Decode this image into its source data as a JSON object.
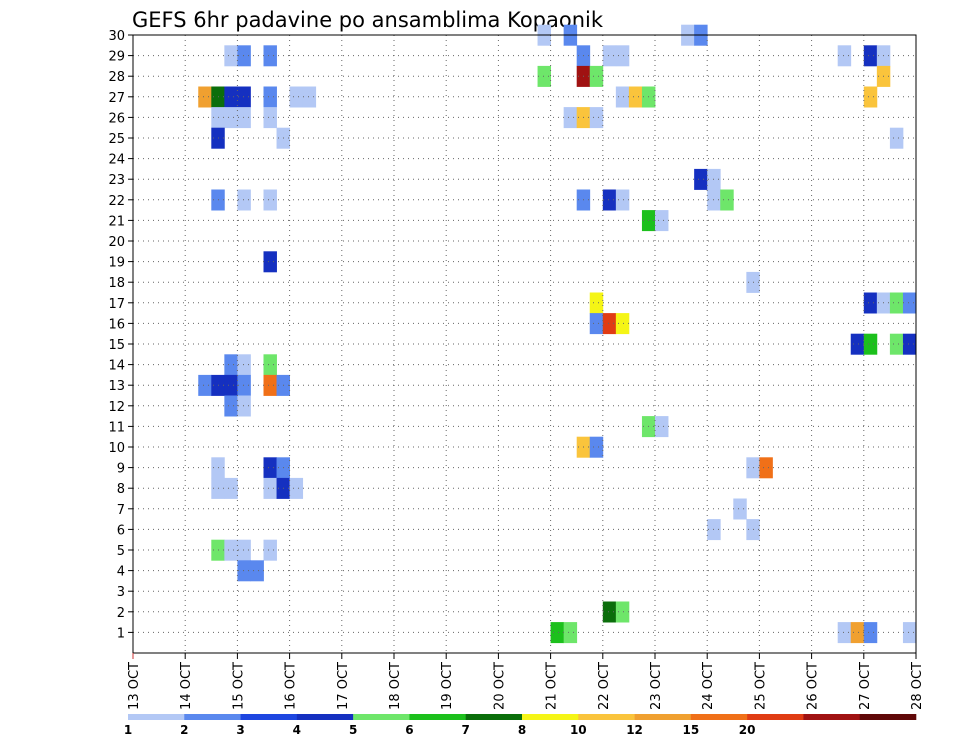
{
  "chart_data": {
    "type": "heatmap",
    "title": "GEFS 6hr padavine po ansamblima Kopaonik",
    "x": {
      "unit": "6-hour steps from 13 OCT 00Z",
      "range": [
        0,
        60
      ],
      "ticks": [
        {
          "step": 0,
          "label": "13 OCT"
        },
        {
          "step": 4,
          "label": "14 OCT"
        },
        {
          "step": 8,
          "label": "15 OCT"
        },
        {
          "step": 12,
          "label": "16 OCT"
        },
        {
          "step": 16,
          "label": "17 OCT"
        },
        {
          "step": 20,
          "label": "18 OCT"
        },
        {
          "step": 24,
          "label": "19 OCT"
        },
        {
          "step": 28,
          "label": "20 OCT"
        },
        {
          "step": 32,
          "label": "21 OCT"
        },
        {
          "step": 36,
          "label": "22 OCT"
        },
        {
          "step": 40,
          "label": "23 OCT"
        },
        {
          "step": 44,
          "label": "24 OCT"
        },
        {
          "step": 48,
          "label": "25 OCT"
        },
        {
          "step": 52,
          "label": "26 OCT"
        },
        {
          "step": 56,
          "label": "27 OCT"
        },
        {
          "step": 60,
          "label": "28 OCT"
        }
      ]
    },
    "y": {
      "ticks": [
        1,
        2,
        3,
        4,
        5,
        6,
        7,
        8,
        9,
        10,
        11,
        12,
        13,
        14,
        15,
        16,
        17,
        18,
        19,
        20,
        21,
        22,
        23,
        24,
        25,
        26,
        27,
        28,
        29,
        30
      ],
      "range": [
        0,
        30
      ]
    },
    "grid": true,
    "legend": {
      "placement": "bottom",
      "colors": [
        "#b3c8f5",
        "#5a88ee",
        "#1e46e0",
        "#1530c0",
        "#6ee66a",
        "#1cc01c",
        "#0b6e0b",
        "#f5f516",
        "#fac43c",
        "#f0a030",
        "#f07018",
        "#e03c14",
        "#a01212",
        "#600808"
      ],
      "labels": [
        "1",
        "2",
        "3",
        "4",
        "5",
        "6",
        "7",
        "8",
        "10",
        "12",
        "15",
        "20"
      ]
    },
    "cells": [
      [
        32,
        30,
        1
      ],
      [
        34,
        30,
        2
      ],
      [
        43,
        30,
        1
      ],
      [
        44,
        30,
        2
      ],
      [
        8,
        29,
        1
      ],
      [
        9,
        29,
        2
      ],
      [
        11,
        29,
        2
      ],
      [
        35,
        29,
        2
      ],
      [
        37,
        29,
        1
      ],
      [
        38,
        29,
        1
      ],
      [
        55,
        29,
        1
      ],
      [
        57,
        29,
        4
      ],
      [
        58,
        29,
        1
      ],
      [
        32,
        28,
        5
      ],
      [
        35,
        28,
        13
      ],
      [
        36,
        28,
        5
      ],
      [
        58,
        28,
        9
      ],
      [
        6,
        27,
        10
      ],
      [
        7,
        27,
        7
      ],
      [
        8,
        27,
        4
      ],
      [
        9,
        27,
        4
      ],
      [
        11,
        27,
        2
      ],
      [
        13,
        27,
        1
      ],
      [
        14,
        27,
        1
      ],
      [
        38,
        27,
        1
      ],
      [
        39,
        27,
        9
      ],
      [
        40,
        27,
        5
      ],
      [
        57,
        27,
        9
      ],
      [
        7,
        26,
        1
      ],
      [
        8,
        26,
        1
      ],
      [
        9,
        26,
        1
      ],
      [
        11,
        26,
        1
      ],
      [
        34,
        26,
        1
      ],
      [
        35,
        26,
        9
      ],
      [
        36,
        26,
        1
      ],
      [
        7,
        25,
        4
      ],
      [
        12,
        25,
        1
      ],
      [
        59,
        25,
        1
      ],
      [
        44,
        23,
        4
      ],
      [
        45,
        23,
        1
      ],
      [
        7,
        22,
        2
      ],
      [
        9,
        22,
        1
      ],
      [
        11,
        22,
        1
      ],
      [
        35,
        22,
        2
      ],
      [
        37,
        22,
        4
      ],
      [
        38,
        22,
        1
      ],
      [
        45,
        22,
        1
      ],
      [
        46,
        22,
        5
      ],
      [
        40,
        21,
        6
      ],
      [
        41,
        21,
        1
      ],
      [
        11,
        19,
        4
      ],
      [
        48,
        18,
        1
      ],
      [
        36,
        17,
        8
      ],
      [
        57,
        17,
        4
      ],
      [
        58,
        17,
        1
      ],
      [
        59,
        17,
        5
      ],
      [
        60,
        17,
        2
      ],
      [
        36,
        16,
        2
      ],
      [
        37,
        16,
        12
      ],
      [
        38,
        16,
        8
      ],
      [
        56,
        15,
        4
      ],
      [
        57,
        15,
        6
      ],
      [
        59,
        15,
        5
      ],
      [
        60,
        15,
        4
      ],
      [
        8,
        14,
        2
      ],
      [
        9,
        14,
        1
      ],
      [
        11,
        14,
        5
      ],
      [
        6,
        13,
        2
      ],
      [
        7,
        13,
        4
      ],
      [
        8,
        13,
        4
      ],
      [
        9,
        13,
        2
      ],
      [
        11,
        13,
        11
      ],
      [
        12,
        13,
        2
      ],
      [
        8,
        12,
        2
      ],
      [
        9,
        12,
        1
      ],
      [
        40,
        11,
        5
      ],
      [
        41,
        11,
        1
      ],
      [
        35,
        10,
        9
      ],
      [
        36,
        10,
        2
      ],
      [
        7,
        9,
        1
      ],
      [
        11,
        9,
        4
      ],
      [
        12,
        9,
        2
      ],
      [
        48,
        9,
        1
      ],
      [
        49,
        9,
        11
      ],
      [
        7,
        8,
        1
      ],
      [
        8,
        8,
        1
      ],
      [
        11,
        8,
        1
      ],
      [
        12,
        8,
        4
      ],
      [
        13,
        8,
        1
      ],
      [
        47,
        7,
        1
      ],
      [
        45,
        6,
        1
      ],
      [
        48,
        6,
        1
      ],
      [
        7,
        5,
        5
      ],
      [
        8,
        5,
        1
      ],
      [
        9,
        5,
        1
      ],
      [
        11,
        5,
        1
      ],
      [
        9,
        4,
        2
      ],
      [
        10,
        4,
        2
      ],
      [
        37,
        2,
        7
      ],
      [
        38,
        2,
        5
      ],
      [
        33,
        1,
        6
      ],
      [
        34,
        1,
        5
      ],
      [
        55,
        1,
        1
      ],
      [
        56,
        1,
        10
      ],
      [
        57,
        1,
        2
      ],
      [
        60,
        1,
        1
      ]
    ]
  }
}
